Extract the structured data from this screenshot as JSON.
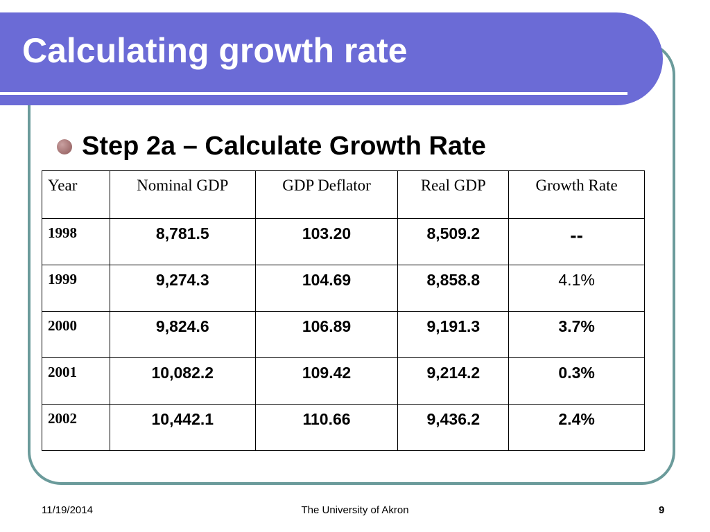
{
  "slide": {
    "title": "Calculating growth rate",
    "bullet": "Step 2a – Calculate Growth Rate"
  },
  "table": {
    "headers": [
      "Year",
      "Nominal GDP",
      "GDP Deflator",
      "Real GDP",
      "Growth Rate"
    ],
    "rows": [
      [
        "1998",
        "8,781.5",
        "103.20",
        "8,509.2",
        "--"
      ],
      [
        "1999",
        "9,274.3",
        "104.69",
        "8,858.8",
        "4.1%"
      ],
      [
        "2000",
        "9,824.6",
        "106.89",
        "9,191.3",
        "3.7%"
      ],
      [
        "2001",
        "10,082.2",
        "109.42",
        "9,214.2",
        "0.3%"
      ],
      [
        "2002",
        "10,442.1",
        "110.66",
        "9,436.2",
        "2.4%"
      ]
    ]
  },
  "footer": {
    "date": "11/19/2014",
    "organization": "The University of Akron",
    "page_number": "9"
  },
  "colors": {
    "title_band": "#6b6bd6",
    "frame": "#6b9b9b",
    "bullet": "#8e5858"
  }
}
